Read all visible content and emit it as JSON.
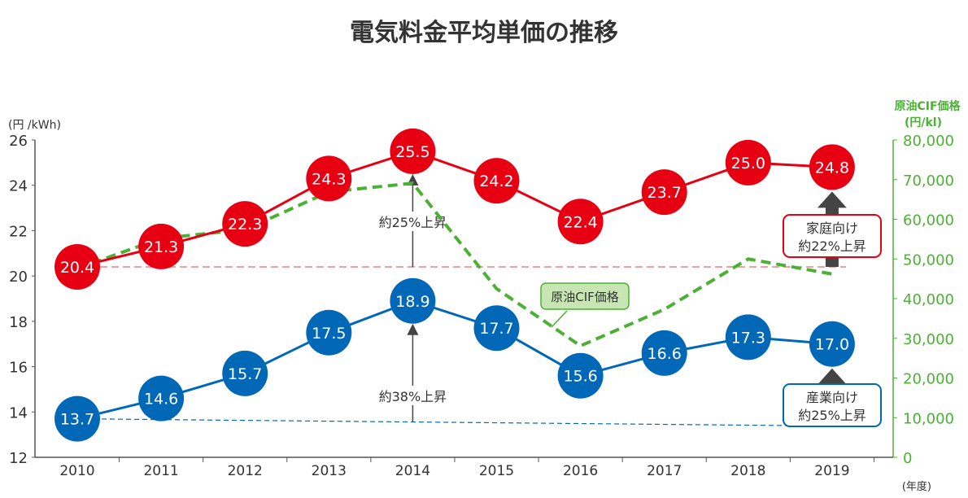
{
  "chart_data": {
    "type": "line",
    "title": "電気料金平均単価の推移",
    "x": [
      "2010",
      "2011",
      "2012",
      "2013",
      "2014",
      "2015",
      "2016",
      "2017",
      "2018",
      "2019"
    ],
    "xlabel": "(年度)",
    "ylabel": "(円 /kWh)",
    "ylim": [
      12,
      26
    ],
    "yticks": [
      "12",
      "14",
      "16",
      "18",
      "20",
      "22",
      "24",
      "26"
    ],
    "y2label_line1": "原油CIF価格",
    "y2label_line2": "(円/kl)",
    "y2lim": [
      0,
      80000
    ],
    "y2ticks": [
      "0",
      "10,000",
      "20,000",
      "30,000",
      "40,000",
      "50,000",
      "60,000",
      "70,000",
      "80,000"
    ],
    "series": [
      {
        "name": "家庭向け",
        "color": "#e60012",
        "axis": "left",
        "values": [
          20.4,
          21.3,
          22.3,
          24.3,
          25.5,
          24.2,
          22.4,
          23.7,
          25.0,
          24.8
        ],
        "labels": [
          "20.4",
          "21.3",
          "22.3",
          "24.3",
          "25.5",
          "24.2",
          "22.4",
          "23.7",
          "25.0",
          "24.8"
        ]
      },
      {
        "name": "産業向け",
        "color": "#0068b7",
        "axis": "left",
        "values": [
          13.7,
          14.6,
          15.7,
          17.5,
          18.9,
          17.7,
          15.6,
          16.6,
          17.3,
          17.0
        ],
        "labels": [
          "13.7",
          "14.6",
          "15.7",
          "17.5",
          "18.9",
          "17.7",
          "15.6",
          "16.6",
          "17.3",
          "17.0"
        ]
      },
      {
        "name": "原油CIF価格",
        "color": "#4cb035",
        "axis": "right",
        "dashed": true,
        "values": [
          47600,
          55200,
          57400,
          66900,
          69100,
          42500,
          28100,
          37300,
          50000,
          46200
        ]
      }
    ],
    "annotations": {
      "oil_legend": "原油CIF価格",
      "home_rise_2014": "約25%上昇",
      "industry_rise_2014": "約38%上昇",
      "home_box_line1": "家庭向け",
      "home_box_line2": "約22%上昇",
      "industry_box_line1": "産業向け",
      "industry_box_line2": "約25%上昇"
    }
  }
}
